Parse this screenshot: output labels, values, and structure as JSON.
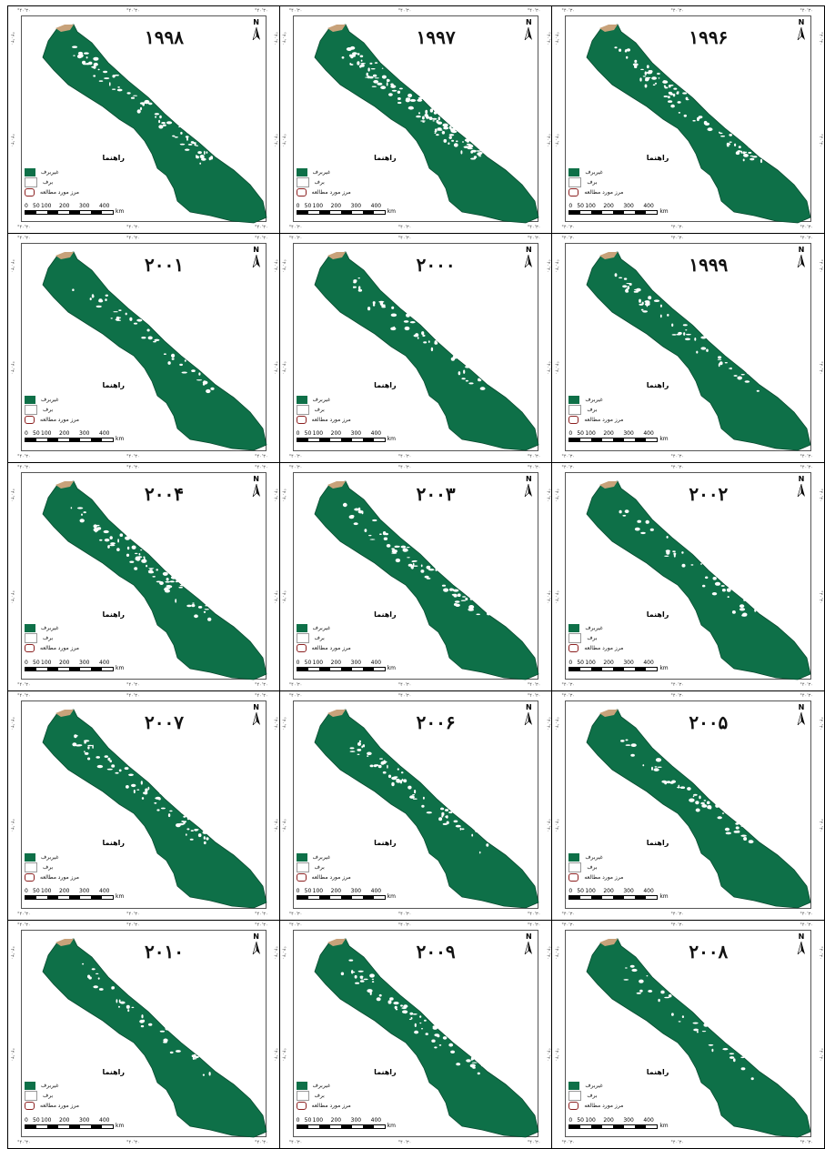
{
  "colors": {
    "non_snow": "#0e7048",
    "snow": "#ffffff",
    "boundary": "#8b1f1f"
  },
  "map_labels": {
    "north_letter": "N",
    "legend_title": "راهنما",
    "legend_items": [
      "غیربرف",
      "برف",
      "مرز مورد مطالعه"
    ],
    "scale_ticks": [
      "0",
      "50",
      "100",
      "200",
      "300",
      "400"
    ],
    "scale_unit": "km",
    "coord_tick": "°۴۰'۳۰"
  },
  "panels": [
    {
      "year": "۱۹۹۸",
      "snow": 14
    },
    {
      "year": "۱۹۹۷",
      "snow": 22
    },
    {
      "year": "۱۹۹۶",
      "snow": 16
    },
    {
      "year": "۲۰۰۱",
      "snow": 8
    },
    {
      "year": "۲۰۰۰",
      "snow": 9
    },
    {
      "year": "۱۹۹۹",
      "snow": 11
    },
    {
      "year": "۲۰۰۴",
      "snow": 14
    },
    {
      "year": "۲۰۰۳",
      "snow": 13
    },
    {
      "year": "۲۰۰۲",
      "snow": 8
    },
    {
      "year": "۲۰۰۷",
      "snow": 13
    },
    {
      "year": "۲۰۰۶",
      "snow": 12
    },
    {
      "year": "۲۰۰۵",
      "snow": 10
    },
    {
      "year": "۲۰۱۰",
      "snow": 7
    },
    {
      "year": "۲۰۰۹",
      "snow": 12
    },
    {
      "year": "۲۰۰۸",
      "snow": 6
    }
  ]
}
